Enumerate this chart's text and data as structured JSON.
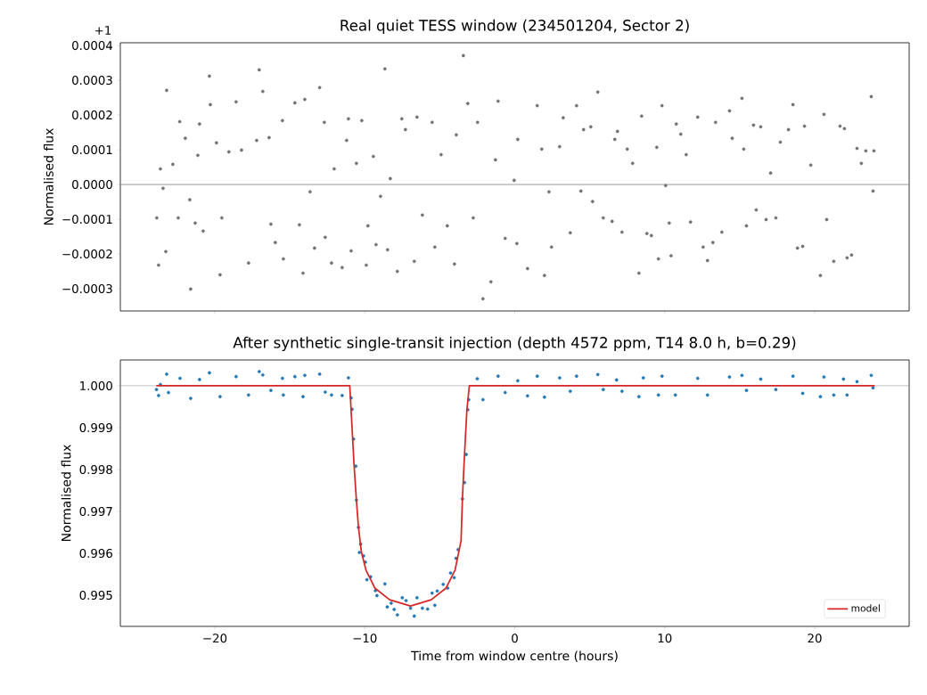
{
  "chart_data": [
    {
      "type": "scatter",
      "title": "Real quiet TESS window  (234501204, Sector 2)",
      "ylabel": "Normalised flux",
      "annotations": [
        "+1"
      ],
      "color": "#707070",
      "marker": "circle",
      "tick_labels": "y",
      "x": [
        -23.87,
        -23.75,
        -23.63,
        -23.45,
        -23.27,
        -23.21,
        -22.8,
        -22.44,
        -22.34,
        -21.97,
        -21.67,
        -21.61,
        -21.31,
        -21.13,
        -21.02,
        -20.78,
        -20.36,
        -20.3,
        -19.89,
        -19.65,
        -19.53,
        -19.06,
        -18.58,
        -18.22,
        -17.75,
        -17.21,
        -17.04,
        -16.8,
        -16.38,
        -16.26,
        -15.97,
        -15.49,
        -15.43,
        -14.66,
        -14.36,
        -14.12,
        -14.0,
        -13.65,
        -13.35,
        -13.01,
        -12.7,
        -12.64,
        -12.22,
        -12.04,
        -11.51,
        -11.21,
        -11.09,
        -10.91,
        -10.56,
        -10.2,
        -9.9,
        -9.79,
        -9.43,
        -9.25,
        -8.95,
        -8.66,
        -8.48,
        -8.3,
        -7.83,
        -7.53,
        -7.29,
        -6.7,
        -6.52,
        -6.16,
        -5.51,
        -5.33,
        -4.91,
        -4.5,
        -4.02,
        -3.9,
        -3.43,
        -3.13,
        -2.77,
        -2.48,
        -2.12,
        -1.59,
        -1.29,
        -1.11,
        -0.64,
        -0.04,
        0.14,
        0.2,
        0.85,
        1.5,
        1.8,
        1.98,
        2.28,
        2.45,
        2.99,
        3.23,
        3.7,
        4.12,
        4.41,
        4.59,
        5.07,
        5.19,
        5.54,
        5.9,
        6.49,
        6.67,
        6.85,
        7.15,
        7.5,
        7.86,
        8.28,
        8.46,
        8.81,
        9.11,
        9.47,
        9.58,
        9.82,
        10.06,
        10.3,
        10.42,
        10.77,
        11.07,
        11.43,
        11.72,
        12.2,
        12.56,
        12.85,
        13.21,
        13.39,
        13.81,
        14.32,
        14.5,
        15.15,
        15.27,
        15.45,
        15.92,
        16.1,
        16.4,
        16.76,
        17.06,
        17.41,
        17.71,
        18.25,
        18.55,
        18.85,
        19.2,
        19.32,
        19.74,
        20.38,
        20.62,
        20.8,
        21.27,
        21.69,
        21.98,
        22.16,
        22.46,
        22.82,
        23.11,
        23.41,
        23.77,
        23.89,
        23.95
      ],
      "values": [
        -9.6e-05,
        -0.000232,
        4.5e-05,
        -1.1e-05,
        -0.000193,
        0.000271,
        5.8e-05,
        -9.6e-05,
        0.000181,
        0.000133,
        -4.4e-05,
        -0.000301,
        -0.000111,
        8.4e-05,
        0.000174,
        -0.000134,
        0.000312,
        0.00023,
        0.00012,
        -0.00026,
        -9.6e-05,
        9.4e-05,
        0.000238,
        9.9e-05,
        -0.000226,
        0.000127,
        0.00033,
        0.000268,
        0.000135,
        -0.000114,
        -0.000167,
        0.000184,
        -0.000214,
        0.000235,
        -0.000116,
        -0.000255,
        0.000245,
        -2.1e-05,
        -0.000183,
        0.000279,
        0.000179,
        -0.000152,
        -0.000226,
        4.5e-05,
        -0.000239,
        0.000127,
        0.000189,
        -0.000191,
        6.1e-05,
        0.000184,
        -0.000232,
        -0.000119,
        8.1e-05,
        -0.000173,
        -3.4e-05,
        0.000333,
        -0.000188,
        1.7e-05,
        -0.00025,
        0.000189,
        0.000158,
        -0.000221,
        0.000194,
        -8.8e-05,
        0.000179,
        -0.00018,
        8.6e-05,
        -0.000119,
        -0.000229,
        0.000143,
        0.000371,
        0.000233,
        -9.6e-05,
        0.000179,
        -0.000329,
        -0.00028,
        7.1e-05,
        0.00024,
        -0.000155,
        1.2e-05,
        -0.00017,
        0.00013,
        -0.000242,
        0.000227,
        0.000102,
        -0.000262,
        -2.1e-05,
        -0.00018,
        0.000109,
        0.000192,
        -0.000139,
        0.000227,
        -1.9e-05,
        0.000158,
        0.000166,
        -4.9e-05,
        0.000266,
        -9.6e-05,
        -0.000106,
        0.00013,
        0.000153,
        -0.000137,
        0.000102,
        6.1e-05,
        -0.000255,
        0.000197,
        -0.000141,
        -0.000147,
        0.000107,
        -0.000214,
        0.000227,
        -3e-06,
        -0.000111,
        -0.000205,
        0.000174,
        0.000145,
        8.6e-05,
        -0.000108,
        0.000194,
        -0.00018,
        -0.000219,
        -0.000167,
        0.000179,
        -0.000137,
        0.000212,
        0.000133,
        0.000248,
        0.000102,
        -0.000119,
        0.000171,
        -7.3e-05,
        0.000166,
        -0.000101,
        3.3e-05,
        -9.6e-05,
        0.000122,
        0.000158,
        0.00023,
        -0.000183,
        -0.000178,
        0.000168,
        5.6e-05,
        -0.000262,
        0.000202,
        -0.000101,
        -0.000221,
        0.000168,
        0.000161,
        -0.000211,
        -0.000203,
        0.000104,
        6.1e-05,
        9.7e-05,
        0.000253,
        -1.9e-05,
        9.7e-05
      ],
      "xlim": [
        -26.3,
        26.3
      ],
      "ylim": [
        -0.000364,
        0.000408
      ],
      "xticks": [
        {
          "value": -20,
          "label": null
        },
        {
          "value": -10,
          "label": null
        },
        {
          "value": 0,
          "label": null
        },
        {
          "value": 10,
          "label": null
        },
        {
          "value": 20,
          "label": null
        }
      ],
      "yticks": [
        {
          "value": -0.0003,
          "label": "−0.0003"
        },
        {
          "value": -0.0002,
          "label": "−0.0002"
        },
        {
          "value": -0.0001,
          "label": "−0.0001"
        },
        {
          "value": 0,
          "label": "0.0000"
        },
        {
          "value": 0.0001,
          "label": "0.0001"
        },
        {
          "value": 0.0002,
          "label": "0.0002"
        },
        {
          "value": 0.0003,
          "label": "0.0003"
        },
        {
          "value": 0.0004,
          "label": "0.0004"
        }
      ],
      "ref_lines": [
        {
          "axis": "y",
          "value": 0,
          "color": "#808080"
        }
      ]
    },
    {
      "type": "scatter",
      "title": "After synthetic single-transit injection (depth 4572 ppm, T14 8.0 h, b=0.29)",
      "xlabel": "Time from window centre (hours)",
      "ylabel": "Normalised flux",
      "legend": "bottom right",
      "series": [
        {
          "type": "scatter",
          "color": "#1f77b4",
          "marker": "circle",
          "x": [
            -23.89,
            -23.75,
            -23.63,
            -23.21,
            -23.09,
            -22.32,
            -21.61,
            -21.02,
            -20.36,
            -19.65,
            -18.58,
            -17.75,
            -17.04,
            -16.8,
            -16.26,
            -15.49,
            -15.43,
            -14.66,
            -14.12,
            -14.0,
            -13.01,
            -12.64,
            -12.22,
            -11.51,
            -11.09,
            -10.91,
            -10.85,
            -10.75,
            -10.6,
            -10.56,
            -10.42,
            -10.36,
            -10.28,
            -10.08,
            -9.96,
            -9.86,
            -9.61,
            -9.29,
            -9.19,
            -8.66,
            -8.5,
            -8.24,
            -8.04,
            -7.83,
            -7.5,
            -7.25,
            -6.95,
            -6.7,
            -6.52,
            -6.16,
            -5.81,
            -5.51,
            -5.33,
            -5.17,
            -4.77,
            -4.47,
            -4.28,
            -4.04,
            -3.92,
            -3.78,
            -3.49,
            -3.35,
            -3.23,
            -3.13,
            -3.07,
            -2.5,
            -2.12,
            -1.11,
            -0.64,
            0.2,
            0.85,
            1.5,
            1.98,
            2.99,
            3.7,
            4.12,
            5.54,
            5.9,
            6.79,
            7.15,
            8.28,
            8.57,
            9.58,
            9.82,
            10.71,
            12.2,
            12.85,
            14.32,
            15.15,
            15.45,
            16.4,
            17.41,
            18.55,
            19.2,
            20.38,
            20.62,
            21.27,
            21.92,
            22.16,
            22.82,
            23.77,
            23.89
          ],
          "values": [
            0.99991,
            0.99977,
            1.00003,
            1.00028,
            0.99984,
            1.00018,
            0.9997,
            1.00015,
            1.00031,
            0.99974,
            1.00022,
            0.99978,
            1.00034,
            1.00026,
            0.99989,
            1.00018,
            0.99978,
            1.00022,
            0.99974,
            1.00025,
            1.00028,
            0.99985,
            0.99978,
            0.99977,
            1.00019,
            0.99971,
            0.99944,
            0.99873,
            0.99808,
            0.99727,
            0.99662,
            0.99602,
            0.99622,
            0.99594,
            0.99579,
            0.99537,
            0.99544,
            0.99511,
            0.99499,
            0.99527,
            0.99472,
            0.99481,
            0.99466,
            0.99453,
            0.99494,
            0.99487,
            0.99469,
            0.9945,
            0.99494,
            0.99469,
            0.99467,
            0.99505,
            0.99476,
            0.9951,
            0.99526,
            0.99517,
            0.99553,
            0.99542,
            0.99588,
            0.99609,
            0.9973,
            0.99769,
            0.99836,
            0.99943,
            0.99967,
            1.00017,
            0.99967,
            1.00023,
            0.99984,
            1.00012,
            0.99976,
            1.00023,
            0.99973,
            1.00019,
            0.99987,
            1.00023,
            1.00027,
            0.99991,
            1.00014,
            0.99987,
            0.99974,
            1.00019,
            0.99978,
            1.00023,
            0.99978,
            1.00018,
            0.99978,
            1.00021,
            1.00025,
            0.99989,
            1.00016,
            0.99991,
            1.00023,
            0.99982,
            0.99974,
            1.00021,
            0.99978,
            1.00016,
            0.99978,
            1.0001,
            1.00025,
            0.99995
          ]
        },
        {
          "type": "line",
          "name": "model",
          "color": "#d62728",
          "marker": "none",
          "line_style": "solid",
          "x": [
            -23.9,
            -11.0,
            -10.71,
            -10.56,
            -10.42,
            -10.22,
            -9.92,
            -9.33,
            -8.34,
            -6.95,
            -5.57,
            -4.58,
            -3.98,
            -3.58,
            -3.49,
            -3.35,
            -3.19,
            -3.03,
            24.0
          ],
          "values": [
            1.0,
            1.0,
            0.99808,
            0.99727,
            0.99662,
            0.99602,
            0.9956,
            0.99517,
            0.99489,
            0.99474,
            0.99489,
            0.99517,
            0.9956,
            0.9963,
            0.9973,
            0.99836,
            0.99943,
            1.0,
            1.0
          ]
        }
      ],
      "xlim": [
        -26.3,
        26.3
      ],
      "ylim": [
        0.994255,
        1.000617
      ],
      "xticks": [
        {
          "value": -20,
          "label": "−20"
        },
        {
          "value": -10,
          "label": "−10"
        },
        {
          "value": 0,
          "label": "0"
        },
        {
          "value": 10,
          "label": "10"
        },
        {
          "value": 20,
          "label": "20"
        }
      ],
      "yticks": [
        0.995,
        0.996,
        0.997,
        0.998,
        0.999,
        {
          "value": 1,
          "label": "1.000"
        }
      ],
      "ref_lines": [
        {
          "axis": "y",
          "value": 1,
          "color": "#808080"
        }
      ]
    }
  ]
}
